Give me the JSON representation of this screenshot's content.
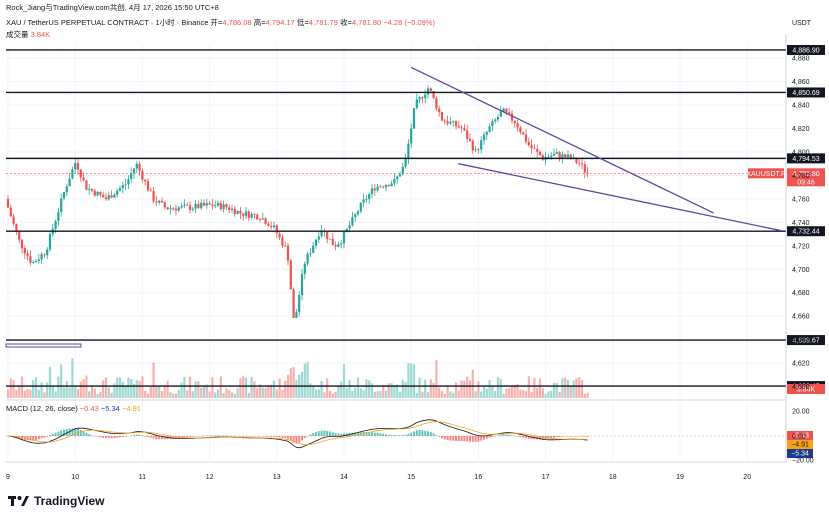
{
  "header": {
    "attribution": "Rock_Jiang与TradingView.com共创, 4月 17, 2026 15:50 UTC+8",
    "symbol": "XAU / TetherUS PERPETUAL CONTRACT · 1小时 · Binance",
    "open_label": "开=",
    "open": "4,786.08",
    "high_label": "高=",
    "high": "4,794.17",
    "low_label": "低=",
    "low": "4,781.79",
    "close_label": "收=",
    "close": "4,781.80",
    "change": "−4.28 (−0.09%)",
    "volume_label": "成交量",
    "volume": "3.84K",
    "currency": "USDT"
  },
  "macd": {
    "label": "MACD (12, 26, close)",
    "v1": "−0.43",
    "v2": "−5.34",
    "v3": "−4.91"
  },
  "brand": "TradingView",
  "colors": {
    "up": "#26a69a",
    "down": "#ef5350",
    "trend": "#5b4a9b",
    "macd": "#131722",
    "signal": "#f7a21b"
  },
  "chart_data": {
    "type": "candlestick",
    "timeframe": "1h",
    "x_ticks": [
      "9",
      "10",
      "11",
      "12",
      "13",
      "14",
      "15",
      "16",
      "17",
      "18",
      "19",
      "20"
    ],
    "y_ticks": [
      4880,
      4860,
      4840,
      4820,
      4800,
      4780,
      4760,
      4740,
      4720,
      4700,
      4680,
      4660,
      4640,
      4620,
      4600
    ],
    "y_range": [
      4592,
      4892
    ],
    "horizontal_levels": [
      {
        "value": 4886.9,
        "label": "4,886.90"
      },
      {
        "value": 4850.69,
        "label": "4,850.69"
      },
      {
        "value": 4794.53,
        "label": "4,794.53"
      },
      {
        "value": 4732.44,
        "label": "4,732.44"
      },
      {
        "value": 4639.67,
        "label": "4,639.67"
      },
      {
        "value": 4600.45,
        "label": "4,600.45"
      }
    ],
    "last_price": {
      "label": "XAUUSDT.P",
      "value": "4,781.80",
      "countdown": "09:46"
    },
    "volume_badge": "3.84K",
    "macd_ticks": [
      "20.00",
      "0.00",
      "−20.00"
    ],
    "macd_badges": [
      "−0.43",
      "−4.91",
      "−5.34"
    ],
    "trendlines": [
      {
        "from": [
          "15",
          4872
        ],
        "to": [
          "19.5",
          4748
        ]
      },
      {
        "from": [
          "15.7",
          4790
        ],
        "to": [
          "20.5",
          4733
        ]
      }
    ],
    "anchors": [
      [
        9.0,
        4760
      ],
      [
        9.2,
        4725
      ],
      [
        9.4,
        4705
      ],
      [
        9.6,
        4715
      ],
      [
        9.9,
        4770
      ],
      [
        10.05,
        4792
      ],
      [
        10.2,
        4770
      ],
      [
        10.5,
        4760
      ],
      [
        10.8,
        4773
      ],
      [
        10.95,
        4790
      ],
      [
        11.2,
        4760
      ],
      [
        11.4,
        4752
      ],
      [
        11.8,
        4753
      ],
      [
        12.1,
        4755
      ],
      [
        12.3,
        4753
      ],
      [
        12.5,
        4748
      ],
      [
        12.8,
        4745
      ],
      [
        13.0,
        4735
      ],
      [
        13.2,
        4715
      ],
      [
        13.3,
        4652
      ],
      [
        13.45,
        4705
      ],
      [
        13.7,
        4735
      ],
      [
        13.9,
        4720
      ],
      [
        14.0,
        4725
      ],
      [
        14.3,
        4755
      ],
      [
        14.5,
        4770
      ],
      [
        14.8,
        4775
      ],
      [
        14.95,
        4790
      ],
      [
        15.1,
        4840
      ],
      [
        15.3,
        4855
      ],
      [
        15.5,
        4828
      ],
      [
        15.8,
        4820
      ],
      [
        16.0,
        4800
      ],
      [
        16.2,
        4820
      ],
      [
        16.4,
        4835
      ],
      [
        16.6,
        4825
      ],
      [
        16.8,
        4805
      ],
      [
        17.0,
        4795
      ],
      [
        17.2,
        4798
      ],
      [
        17.4,
        4795
      ],
      [
        17.55,
        4790
      ],
      [
        17.65,
        4782
      ]
    ]
  }
}
